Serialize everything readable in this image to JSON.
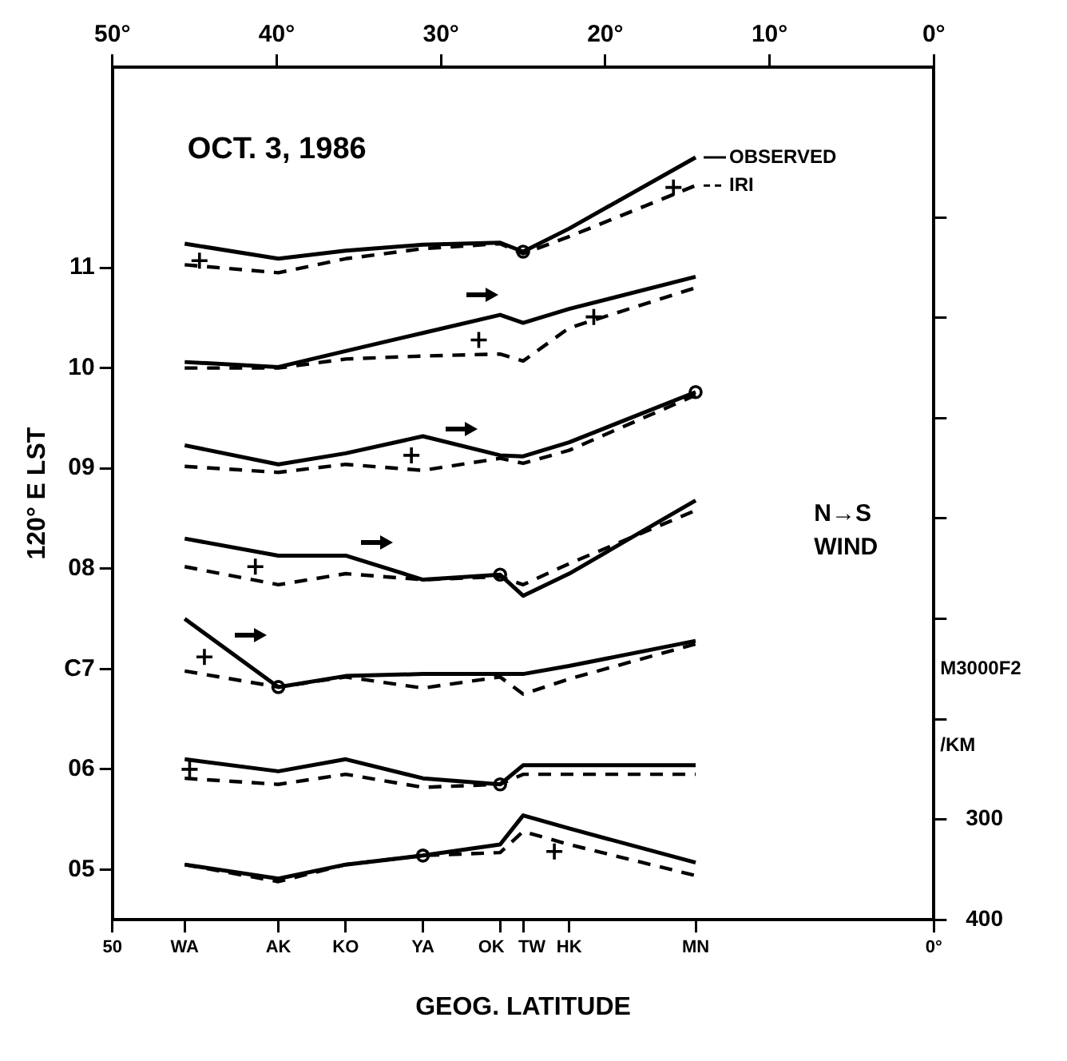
{
  "chart_data": {
    "type": "line",
    "title": "OCT. 3, 1986",
    "xlabel": "GEOG. LATITUDE",
    "ylabel": "120° E LST",
    "y2label": "M3000F2 /KM",
    "annotations": [
      "N→S WIND"
    ],
    "x": [
      45.6,
      39.9,
      35.8,
      31.1,
      26.4,
      25.0,
      22.2,
      14.5
    ],
    "xlim": [
      50,
      0
    ],
    "xticks": [
      {
        "value": 50,
        "label": "50"
      },
      {
        "value": 45.6,
        "label": "WA"
      },
      {
        "value": 39.9,
        "label": "AK"
      },
      {
        "value": 35.8,
        "label": "KO"
      },
      {
        "value": 31.1,
        "label": "YA"
      },
      {
        "value": 26.4,
        "label": "OK"
      },
      {
        "value": 25.0,
        "label": "TW"
      },
      {
        "value": 22.2,
        "label": "HK"
      },
      {
        "value": 14.5,
        "label": "MN"
      },
      {
        "value": 0,
        "label": "0°"
      }
    ],
    "x2lim": [
      50,
      0
    ],
    "x2ticks": [
      {
        "value": 50,
        "label": "50°"
      },
      {
        "value": 40,
        "label": "40°"
      },
      {
        "value": 30,
        "label": "30°"
      },
      {
        "value": 20,
        "label": "20°"
      },
      {
        "value": 10,
        "label": "10°"
      },
      {
        "value": 0,
        "label": "0°"
      }
    ],
    "ylim": [
      4.5,
      13
    ],
    "yticks": [
      {
        "value": 5,
        "label": "05"
      },
      {
        "value": 6,
        "label": "06"
      },
      {
        "value": 7,
        "label": "C7"
      },
      {
        "value": 8,
        "label": "08"
      },
      {
        "value": 9,
        "label": "09"
      },
      {
        "value": 10,
        "label": "10"
      },
      {
        "value": 11,
        "label": "11"
      }
    ],
    "y2lim": [
      400,
      -450
    ],
    "y2ticks": [
      400,
      300,
      {
        "value": 200,
        "label": null
      },
      {
        "value": 100,
        "label": null
      },
      {
        "value": 0,
        "label": null
      },
      {
        "value": -100,
        "label": null
      },
      {
        "value": -200,
        "label": null
      },
      {
        "value": -300,
        "label": null
      }
    ],
    "grid": false,
    "legend": "top right",
    "marker": "none",
    "series": [
      {
        "name": "OBSERVED",
        "color": "#000000",
        "line_style": "solid",
        "values": [
          11.24,
          11.09,
          11.17,
          11.23,
          11.25,
          11.16,
          11.39,
          12.1
        ]
      },
      {
        "name": "IRI",
        "color": "#000000",
        "line_style": "dashed",
        "values": [
          11.03,
          10.95,
          11.09,
          11.19,
          11.24,
          11.14,
          11.31,
          11.82
        ]
      },
      {
        "color": "#000000",
        "line_style": "solid",
        "values": [
          10.06,
          10.01,
          10.17,
          10.35,
          10.53,
          10.45,
          10.59,
          10.91
        ]
      },
      {
        "color": "#000000",
        "line_style": "dashed",
        "values": [
          10.0,
          10.0,
          10.09,
          10.12,
          10.14,
          10.07,
          10.4,
          10.8
        ]
      },
      {
        "color": "#000000",
        "line_style": "solid",
        "values": [
          9.23,
          9.04,
          9.15,
          9.32,
          9.13,
          9.12,
          9.26,
          9.76
        ]
      },
      {
        "color": "#000000",
        "line_style": "dashed",
        "values": [
          9.02,
          8.96,
          9.04,
          8.98,
          9.1,
          9.05,
          9.18,
          9.73
        ]
      },
      {
        "color": "#000000",
        "line_style": "solid",
        "values": [
          8.3,
          8.13,
          8.13,
          7.89,
          7.94,
          7.73,
          7.95,
          8.68
        ]
      },
      {
        "color": "#000000",
        "line_style": "dashed",
        "values": [
          8.02,
          7.84,
          7.95,
          7.89,
          7.92,
          7.84,
          8.05,
          8.58
        ]
      },
      {
        "color": "#000000",
        "line_style": "solid",
        "values": [
          7.5,
          6.82,
          6.93,
          6.95,
          6.95,
          6.95,
          7.03,
          7.28
        ]
      },
      {
        "color": "#000000",
        "line_style": "dashed",
        "values": [
          6.98,
          6.82,
          6.92,
          6.81,
          6.92,
          6.75,
          6.9,
          7.25
        ]
      },
      {
        "color": "#000000",
        "line_style": "solid",
        "values": [
          6.1,
          5.98,
          6.1,
          5.91,
          5.85,
          6.04,
          6.04,
          6.04
        ]
      },
      {
        "color": "#000000",
        "line_style": "dashed",
        "values": [
          5.91,
          5.85,
          5.95,
          5.82,
          5.85,
          5.95,
          5.95,
          5.95
        ]
      },
      {
        "color": "#000000",
        "line_style": "solid",
        "values": [
          5.05,
          4.91,
          5.05,
          5.14,
          5.25,
          5.54,
          5.41,
          5.07
        ]
      },
      {
        "color": "#000000",
        "line_style": "dashed",
        "values": [
          5.05,
          4.88,
          5.05,
          5.14,
          5.17,
          5.38,
          5.25,
          4.94
        ]
      },
      {
        "type": "scatter",
        "marker": "cross",
        "color": "#000000",
        "x": [
          44.7,
          15.85,
          27.7,
          20.7,
          31.8,
          41.3,
          44.4,
          45.3,
          23.1
        ],
        "values": [
          11.07,
          11.8,
          10.28,
          10.51,
          9.13,
          8.02,
          7.12,
          6.0,
          5.18
        ]
      },
      {
        "type": "scatter",
        "marker": "circle",
        "color": "#000000",
        "x": [
          25.0,
          14.5,
          26.4,
          39.9,
          26.4,
          31.1
        ],
        "values": [
          11.16,
          9.76,
          7.94,
          6.82,
          5.85,
          5.14
        ]
      }
    ]
  }
}
